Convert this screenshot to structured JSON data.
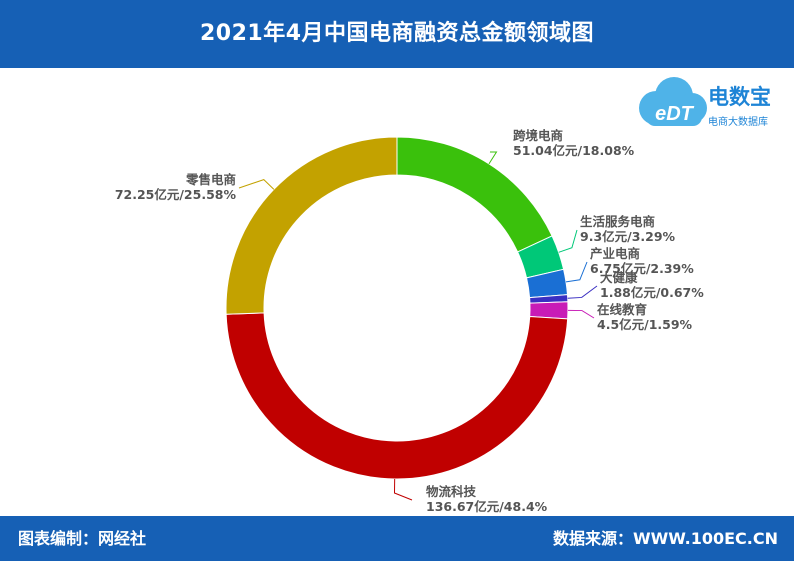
{
  "header": {
    "title": "2021年4月中国电商融资总金额领域图"
  },
  "logo": {
    "short": "eDT",
    "name": "电数宝",
    "tagline": "电商大数据库",
    "cloud_color": "#4fb3e8"
  },
  "footer": {
    "left": "图表编制：网经社",
    "right": "数据来源：WWW.100EC.CN"
  },
  "chart_data": {
    "type": "pie",
    "donut": true,
    "title": "2021年4月中国电商融资总金额领域图",
    "unit": "亿元",
    "slices": [
      {
        "label": "跨境电商",
        "value": 51.04,
        "percent": 18.08,
        "value_text": "51.04亿元/18.08%",
        "color": "#3ac10c"
      },
      {
        "label": "生活服务电商",
        "value": 9.3,
        "percent": 3.29,
        "value_text": "9.3亿元/3.29%",
        "color": "#00c878"
      },
      {
        "label": "产业电商",
        "value": 6.75,
        "percent": 2.39,
        "value_text": "6.75亿元/2.39%",
        "color": "#1a6fd4"
      },
      {
        "label": "大健康",
        "value": 1.88,
        "percent": 0.67,
        "value_text": "1.88亿元/0.67%",
        "color": "#3a2fc2"
      },
      {
        "label": "在线教育",
        "value": 4.5,
        "percent": 1.59,
        "value_text": "4.5亿元/1.59%",
        "color": "#c81bb6"
      },
      {
        "label": "物流科技",
        "value": 136.67,
        "percent": 48.4,
        "value_text": "136.67亿元/48.4%",
        "color": "#c00000"
      },
      {
        "label": "零售电商",
        "value": 72.25,
        "percent": 25.58,
        "value_text": "72.25亿元/25.58%",
        "color": "#c3a200"
      }
    ]
  }
}
